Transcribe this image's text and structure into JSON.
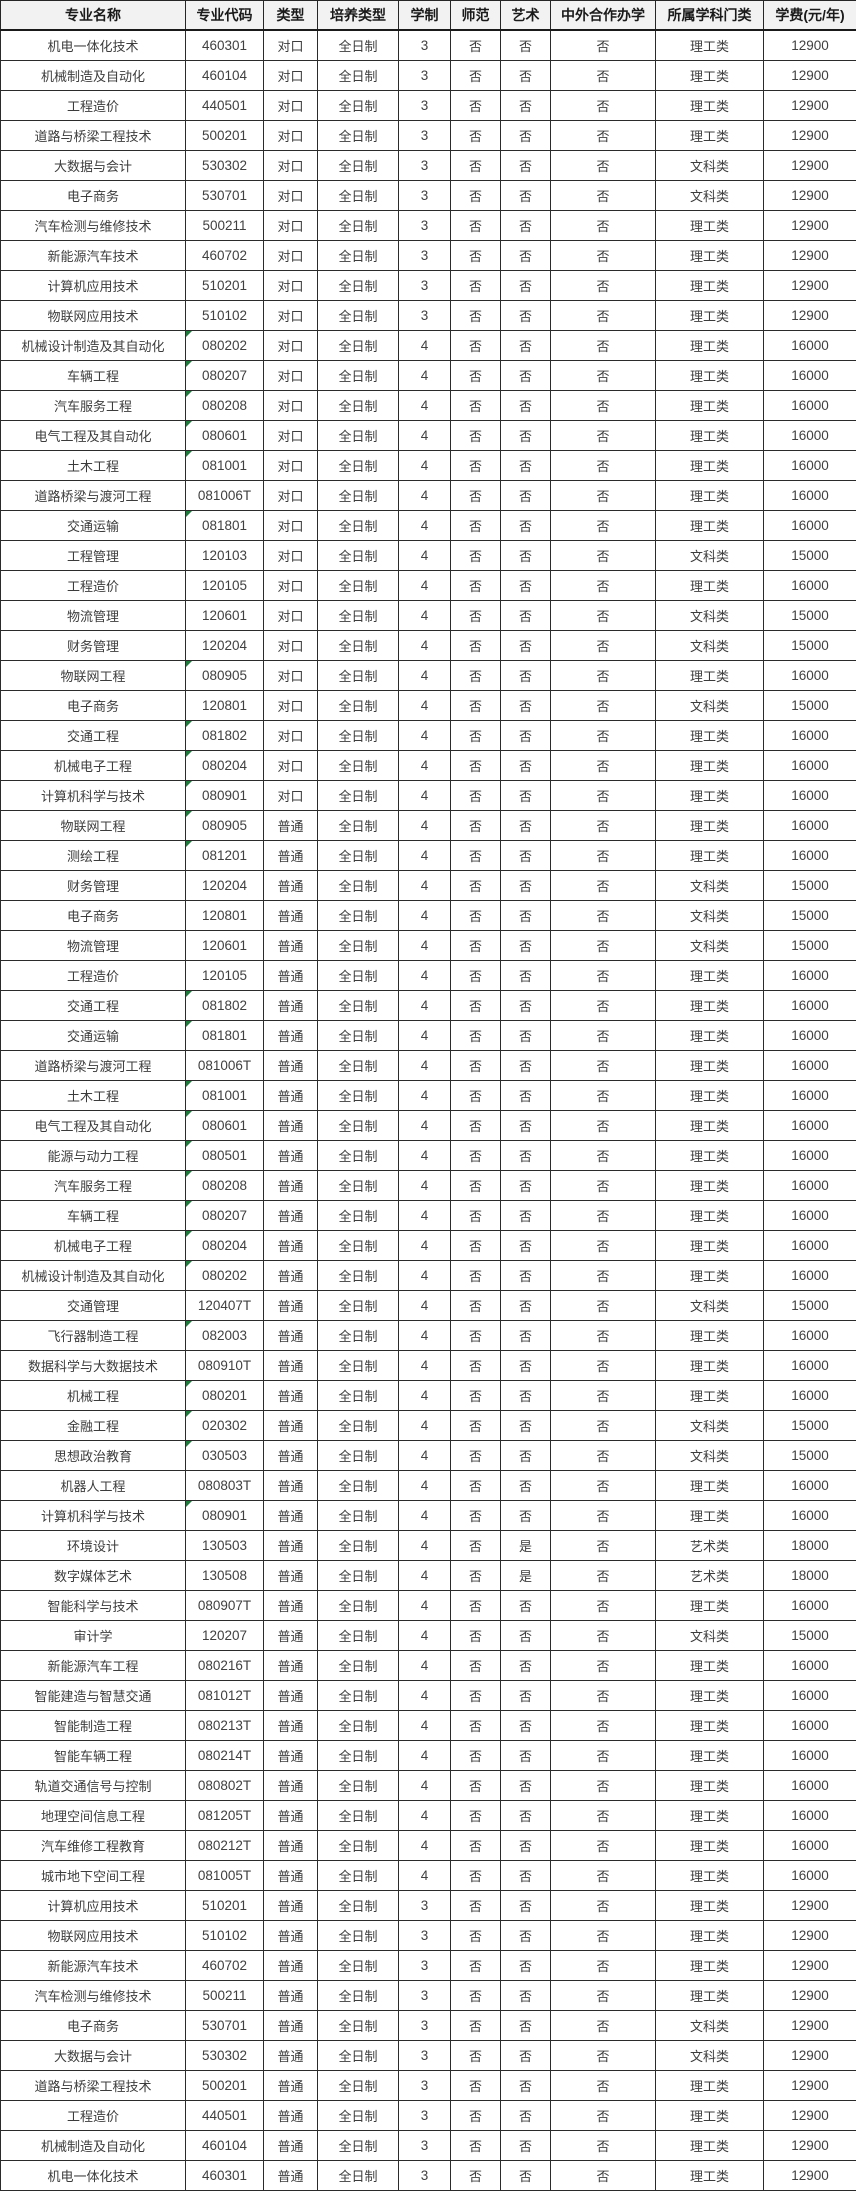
{
  "colors": {
    "header_bg": "#f2f2f2",
    "grid_border": "#2b2b2b",
    "body_text": "#3c3c3c",
    "header_text": "#1a1a1a",
    "text_stored_marker_green": "#1d7c3c"
  },
  "chart_data": {
    "type": "table",
    "title": "",
    "legend": null,
    "grid": true,
    "column_keys": [
      "major-name",
      "major-code",
      "type",
      "training-type",
      "duration",
      "teacher-training",
      "art",
      "sino-foreign-coop",
      "subject-category",
      "tuition"
    ],
    "columns": [
      "专业名称",
      "专业代码",
      "类型",
      "培养类型",
      "学制",
      "师范",
      "艺术",
      "中外合作办学",
      "所属学科门类",
      "学费(元/年)"
    ],
    "rows": [
      [
        "机电一体化技术",
        "460301",
        "对口",
        "全日制",
        "3",
        "否",
        "否",
        "否",
        "理工类",
        "12900"
      ],
      [
        "机械制造及自动化",
        "460104",
        "对口",
        "全日制",
        "3",
        "否",
        "否",
        "否",
        "理工类",
        "12900"
      ],
      [
        "工程造价",
        "440501",
        "对口",
        "全日制",
        "3",
        "否",
        "否",
        "否",
        "理工类",
        "12900"
      ],
      [
        "道路与桥梁工程技术",
        "500201",
        "对口",
        "全日制",
        "3",
        "否",
        "否",
        "否",
        "理工类",
        "12900"
      ],
      [
        "大数据与会计",
        "530302",
        "对口",
        "全日制",
        "3",
        "否",
        "否",
        "否",
        "文科类",
        "12900"
      ],
      [
        "电子商务",
        "530701",
        "对口",
        "全日制",
        "3",
        "否",
        "否",
        "否",
        "文科类",
        "12900"
      ],
      [
        "汽车检测与维修技术",
        "500211",
        "对口",
        "全日制",
        "3",
        "否",
        "否",
        "否",
        "理工类",
        "12900"
      ],
      [
        "新能源汽车技术",
        "460702",
        "对口",
        "全日制",
        "3",
        "否",
        "否",
        "否",
        "理工类",
        "12900"
      ],
      [
        "计算机应用技术",
        "510201",
        "对口",
        "全日制",
        "3",
        "否",
        "否",
        "否",
        "理工类",
        "12900"
      ],
      [
        "物联网应用技术",
        "510102",
        "对口",
        "全日制",
        "3",
        "否",
        "否",
        "否",
        "理工类",
        "12900"
      ],
      [
        "机械设计制造及其自动化",
        "080202",
        "对口",
        "全日制",
        "4",
        "否",
        "否",
        "否",
        "理工类",
        "16000"
      ],
      [
        "车辆工程",
        "080207",
        "对口",
        "全日制",
        "4",
        "否",
        "否",
        "否",
        "理工类",
        "16000"
      ],
      [
        "汽车服务工程",
        "080208",
        "对口",
        "全日制",
        "4",
        "否",
        "否",
        "否",
        "理工类",
        "16000"
      ],
      [
        "电气工程及其自动化",
        "080601",
        "对口",
        "全日制",
        "4",
        "否",
        "否",
        "否",
        "理工类",
        "16000"
      ],
      [
        "土木工程",
        "081001",
        "对口",
        "全日制",
        "4",
        "否",
        "否",
        "否",
        "理工类",
        "16000"
      ],
      [
        "道路桥梁与渡河工程",
        "081006T",
        "对口",
        "全日制",
        "4",
        "否",
        "否",
        "否",
        "理工类",
        "16000"
      ],
      [
        "交通运输",
        "081801",
        "对口",
        "全日制",
        "4",
        "否",
        "否",
        "否",
        "理工类",
        "16000"
      ],
      [
        "工程管理",
        "120103",
        "对口",
        "全日制",
        "4",
        "否",
        "否",
        "否",
        "文科类",
        "15000"
      ],
      [
        "工程造价",
        "120105",
        "对口",
        "全日制",
        "4",
        "否",
        "否",
        "否",
        "理工类",
        "16000"
      ],
      [
        "物流管理",
        "120601",
        "对口",
        "全日制",
        "4",
        "否",
        "否",
        "否",
        "文科类",
        "15000"
      ],
      [
        "财务管理",
        "120204",
        "对口",
        "全日制",
        "4",
        "否",
        "否",
        "否",
        "文科类",
        "15000"
      ],
      [
        "物联网工程",
        "080905",
        "对口",
        "全日制",
        "4",
        "否",
        "否",
        "否",
        "理工类",
        "16000"
      ],
      [
        "电子商务",
        "120801",
        "对口",
        "全日制",
        "4",
        "否",
        "否",
        "否",
        "文科类",
        "15000"
      ],
      [
        "交通工程",
        "081802",
        "对口",
        "全日制",
        "4",
        "否",
        "否",
        "否",
        "理工类",
        "16000"
      ],
      [
        "机械电子工程",
        "080204",
        "对口",
        "全日制",
        "4",
        "否",
        "否",
        "否",
        "理工类",
        "16000"
      ],
      [
        "计算机科学与技术",
        "080901",
        "对口",
        "全日制",
        "4",
        "否",
        "否",
        "否",
        "理工类",
        "16000"
      ],
      [
        "物联网工程",
        "080905",
        "普通",
        "全日制",
        "4",
        "否",
        "否",
        "否",
        "理工类",
        "16000"
      ],
      [
        "测绘工程",
        "081201",
        "普通",
        "全日制",
        "4",
        "否",
        "否",
        "否",
        "理工类",
        "16000"
      ],
      [
        "财务管理",
        "120204",
        "普通",
        "全日制",
        "4",
        "否",
        "否",
        "否",
        "文科类",
        "15000"
      ],
      [
        "电子商务",
        "120801",
        "普通",
        "全日制",
        "4",
        "否",
        "否",
        "否",
        "文科类",
        "15000"
      ],
      [
        "物流管理",
        "120601",
        "普通",
        "全日制",
        "4",
        "否",
        "否",
        "否",
        "文科类",
        "15000"
      ],
      [
        "工程造价",
        "120105",
        "普通",
        "全日制",
        "4",
        "否",
        "否",
        "否",
        "理工类",
        "16000"
      ],
      [
        "交通工程",
        "081802",
        "普通",
        "全日制",
        "4",
        "否",
        "否",
        "否",
        "理工类",
        "16000"
      ],
      [
        "交通运输",
        "081801",
        "普通",
        "全日制",
        "4",
        "否",
        "否",
        "否",
        "理工类",
        "16000"
      ],
      [
        "道路桥梁与渡河工程",
        "081006T",
        "普通",
        "全日制",
        "4",
        "否",
        "否",
        "否",
        "理工类",
        "16000"
      ],
      [
        "土木工程",
        "081001",
        "普通",
        "全日制",
        "4",
        "否",
        "否",
        "否",
        "理工类",
        "16000"
      ],
      [
        "电气工程及其自动化",
        "080601",
        "普通",
        "全日制",
        "4",
        "否",
        "否",
        "否",
        "理工类",
        "16000"
      ],
      [
        "能源与动力工程",
        "080501",
        "普通",
        "全日制",
        "4",
        "否",
        "否",
        "否",
        "理工类",
        "16000"
      ],
      [
        "汽车服务工程",
        "080208",
        "普通",
        "全日制",
        "4",
        "否",
        "否",
        "否",
        "理工类",
        "16000"
      ],
      [
        "车辆工程",
        "080207",
        "普通",
        "全日制",
        "4",
        "否",
        "否",
        "否",
        "理工类",
        "16000"
      ],
      [
        "机械电子工程",
        "080204",
        "普通",
        "全日制",
        "4",
        "否",
        "否",
        "否",
        "理工类",
        "16000"
      ],
      [
        "机械设计制造及其自动化",
        "080202",
        "普通",
        "全日制",
        "4",
        "否",
        "否",
        "否",
        "理工类",
        "16000"
      ],
      [
        "交通管理",
        "120407T",
        "普通",
        "全日制",
        "4",
        "否",
        "否",
        "否",
        "文科类",
        "15000"
      ],
      [
        "飞行器制造工程",
        "082003",
        "普通",
        "全日制",
        "4",
        "否",
        "否",
        "否",
        "理工类",
        "16000"
      ],
      [
        "数据科学与大数据技术",
        "080910T",
        "普通",
        "全日制",
        "4",
        "否",
        "否",
        "否",
        "理工类",
        "16000"
      ],
      [
        "机械工程",
        "080201",
        "普通",
        "全日制",
        "4",
        "否",
        "否",
        "否",
        "理工类",
        "16000"
      ],
      [
        "金融工程",
        "020302",
        "普通",
        "全日制",
        "4",
        "否",
        "否",
        "否",
        "文科类",
        "15000"
      ],
      [
        "思想政治教育",
        "030503",
        "普通",
        "全日制",
        "4",
        "否",
        "否",
        "否",
        "文科类",
        "15000"
      ],
      [
        "机器人工程",
        "080803T",
        "普通",
        "全日制",
        "4",
        "否",
        "否",
        "否",
        "理工类",
        "16000"
      ],
      [
        "计算机科学与技术",
        "080901",
        "普通",
        "全日制",
        "4",
        "否",
        "否",
        "否",
        "理工类",
        "16000"
      ],
      [
        "环境设计",
        "130503",
        "普通",
        "全日制",
        "4",
        "否",
        "是",
        "否",
        "艺术类",
        "18000"
      ],
      [
        "数字媒体艺术",
        "130508",
        "普通",
        "全日制",
        "4",
        "否",
        "是",
        "否",
        "艺术类",
        "18000"
      ],
      [
        "智能科学与技术",
        "080907T",
        "普通",
        "全日制",
        "4",
        "否",
        "否",
        "否",
        "理工类",
        "16000"
      ],
      [
        "审计学",
        "120207",
        "普通",
        "全日制",
        "4",
        "否",
        "否",
        "否",
        "文科类",
        "15000"
      ],
      [
        "新能源汽车工程",
        "080216T",
        "普通",
        "全日制",
        "4",
        "否",
        "否",
        "否",
        "理工类",
        "16000"
      ],
      [
        "智能建造与智慧交通",
        "081012T",
        "普通",
        "全日制",
        "4",
        "否",
        "否",
        "否",
        "理工类",
        "16000"
      ],
      [
        "智能制造工程",
        "080213T",
        "普通",
        "全日制",
        "4",
        "否",
        "否",
        "否",
        "理工类",
        "16000"
      ],
      [
        "智能车辆工程",
        "080214T",
        "普通",
        "全日制",
        "4",
        "否",
        "否",
        "否",
        "理工类",
        "16000"
      ],
      [
        "轨道交通信号与控制",
        "080802T",
        "普通",
        "全日制",
        "4",
        "否",
        "否",
        "否",
        "理工类",
        "16000"
      ],
      [
        "地理空间信息工程",
        "081205T",
        "普通",
        "全日制",
        "4",
        "否",
        "否",
        "否",
        "理工类",
        "16000"
      ],
      [
        "汽车维修工程教育",
        "080212T",
        "普通",
        "全日制",
        "4",
        "否",
        "否",
        "否",
        "理工类",
        "16000"
      ],
      [
        "城市地下空间工程",
        "081005T",
        "普通",
        "全日制",
        "4",
        "否",
        "否",
        "否",
        "理工类",
        "16000"
      ],
      [
        "计算机应用技术",
        "510201",
        "普通",
        "全日制",
        "3",
        "否",
        "否",
        "否",
        "理工类",
        "12900"
      ],
      [
        "物联网应用技术",
        "510102",
        "普通",
        "全日制",
        "3",
        "否",
        "否",
        "否",
        "理工类",
        "12900"
      ],
      [
        "新能源汽车技术",
        "460702",
        "普通",
        "全日制",
        "3",
        "否",
        "否",
        "否",
        "理工类",
        "12900"
      ],
      [
        "汽车检测与维修技术",
        "500211",
        "普通",
        "全日制",
        "3",
        "否",
        "否",
        "否",
        "理工类",
        "12900"
      ],
      [
        "电子商务",
        "530701",
        "普通",
        "全日制",
        "3",
        "否",
        "否",
        "否",
        "文科类",
        "12900"
      ],
      [
        "大数据与会计",
        "530302",
        "普通",
        "全日制",
        "3",
        "否",
        "否",
        "否",
        "文科类",
        "12900"
      ],
      [
        "道路与桥梁工程技术",
        "500201",
        "普通",
        "全日制",
        "3",
        "否",
        "否",
        "否",
        "理工类",
        "12900"
      ],
      [
        "工程造价",
        "440501",
        "普通",
        "全日制",
        "3",
        "否",
        "否",
        "否",
        "理工类",
        "12900"
      ],
      [
        "机械制造及自动化",
        "460104",
        "普通",
        "全日制",
        "3",
        "否",
        "否",
        "否",
        "理工类",
        "12900"
      ],
      [
        "机电一体化技术",
        "460301",
        "普通",
        "全日制",
        "3",
        "否",
        "否",
        "否",
        "理工类",
        "12900"
      ]
    ]
  }
}
